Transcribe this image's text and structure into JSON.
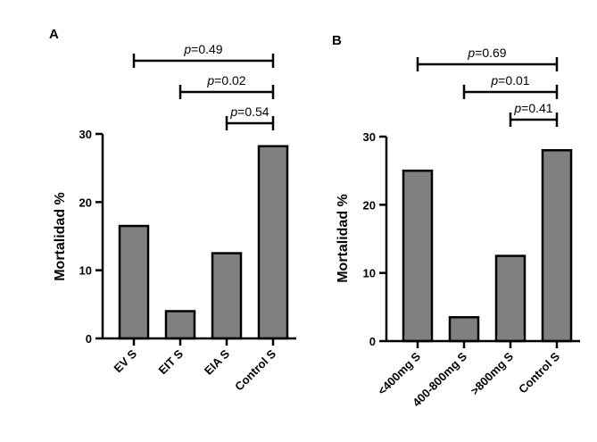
{
  "chart_data": [
    {
      "type": "bar",
      "panel": "A",
      "title": "",
      "ylabel": "Mortalidad %",
      "xlabel": "",
      "ylim": [
        0,
        30
      ],
      "yticks": [
        0,
        10,
        20,
        30
      ],
      "categories": [
        "EV S",
        "EIT S",
        "EIA S",
        "Control S"
      ],
      "values": [
        16.5,
        4,
        12.5,
        28.2
      ],
      "bar_color": "#808080",
      "comparisons": [
        {
          "from": "EV S",
          "to": "Control S",
          "label_prefix": "p",
          "label_value": "=0.49"
        },
        {
          "from": "EIT S",
          "to": "Control S",
          "label_prefix": "p",
          "label_value": "=0.02"
        },
        {
          "from": "EIA S",
          "to": "Control S",
          "label_prefix": "p",
          "label_value": "=0.54"
        }
      ]
    },
    {
      "type": "bar",
      "panel": "B",
      "title": "",
      "ylabel": "Mortalidad %",
      "xlabel": "",
      "ylim": [
        0,
        30
      ],
      "yticks": [
        0,
        10,
        20,
        30
      ],
      "categories": [
        "<400mg S",
        "400-800mg S",
        ">800mg S",
        "Control S"
      ],
      "values": [
        25,
        3.5,
        12.5,
        28
      ],
      "bar_color": "#808080",
      "comparisons": [
        {
          "from": "<400mg S",
          "to": "Control S",
          "label_prefix": "p",
          "label_value": "=0.69"
        },
        {
          "from": "400-800mg S",
          "to": "Control S",
          "label_prefix": "p",
          "label_value": "=0.01"
        },
        {
          "from": ">800mg S",
          "to": "Control S",
          "label_prefix": "p",
          "label_value": "=0.41"
        }
      ]
    }
  ]
}
